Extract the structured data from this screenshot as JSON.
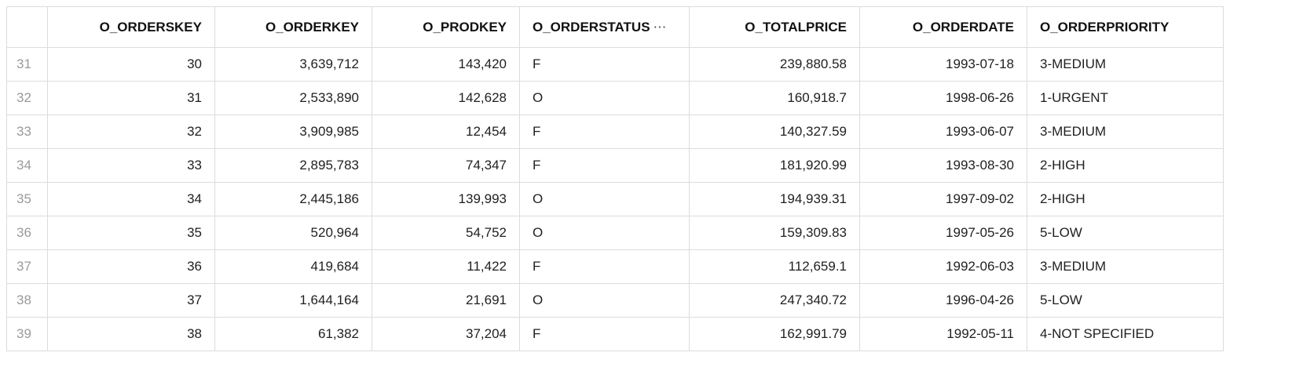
{
  "table": {
    "columns": [
      "O_ORDERSKEY",
      "O_ORDERKEY",
      "O_PRODKEY",
      "O_ORDERSTATUS",
      "O_TOTALPRICE",
      "O_ORDERDATE",
      "O_ORDERPRIORITY"
    ],
    "more_glyph": "⋯",
    "rows": [
      {
        "n": "31",
        "c": [
          "30",
          "3,639,712",
          "143,420",
          "F",
          "239,880.58",
          "1993-07-18",
          "3-MEDIUM"
        ]
      },
      {
        "n": "32",
        "c": [
          "31",
          "2,533,890",
          "142,628",
          "O",
          "160,918.7",
          "1998-06-26",
          "1-URGENT"
        ]
      },
      {
        "n": "33",
        "c": [
          "32",
          "3,909,985",
          "12,454",
          "F",
          "140,327.59",
          "1993-06-07",
          "3-MEDIUM"
        ]
      },
      {
        "n": "34",
        "c": [
          "33",
          "2,895,783",
          "74,347",
          "F",
          "181,920.99",
          "1993-08-30",
          "2-HIGH"
        ]
      },
      {
        "n": "35",
        "c": [
          "34",
          "2,445,186",
          "139,993",
          "O",
          "194,939.31",
          "1997-09-02",
          "2-HIGH"
        ]
      },
      {
        "n": "36",
        "c": [
          "35",
          "520,964",
          "54,752",
          "O",
          "159,309.83",
          "1997-05-26",
          "5-LOW"
        ]
      },
      {
        "n": "37",
        "c": [
          "36",
          "419,684",
          "11,422",
          "F",
          "112,659.1",
          "1992-06-03",
          "3-MEDIUM"
        ]
      },
      {
        "n": "38",
        "c": [
          "37",
          "1,644,164",
          "21,691",
          "O",
          "247,340.72",
          "1996-04-26",
          "5-LOW"
        ]
      },
      {
        "n": "39",
        "c": [
          "38",
          "61,382",
          "37,204",
          "F",
          "162,991.79",
          "1992-05-11",
          "4-NOT SPECIFIED"
        ]
      }
    ]
  }
}
